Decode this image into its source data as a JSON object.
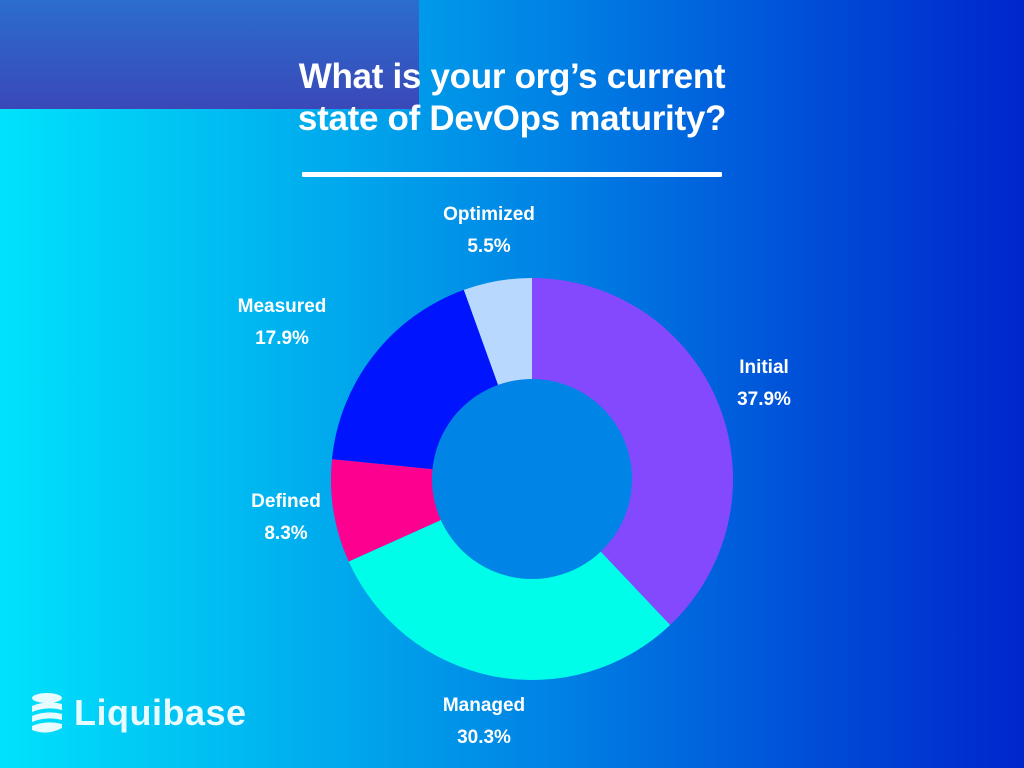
{
  "title": "What is your org’s current\nstate of DevOps maturity?",
  "brand": {
    "name": "Liquibase",
    "icon": "liquibase-logo-icon"
  },
  "colors": {
    "initial": "#8549fd",
    "managed": "#00fde9",
    "defined": "#fe0090",
    "measured": "#0014fd",
    "optimized": "#b8d8fd",
    "center": "#0084e6"
  },
  "chart_data": {
    "type": "pie",
    "variant": "donut",
    "title": "What is your org’s current state of DevOps maturity?",
    "categories": [
      "Initial",
      "Managed",
      "Defined",
      "Measured",
      "Optimized"
    ],
    "values": [
      37.9,
      30.3,
      8.3,
      17.9,
      5.5
    ],
    "unit": "%",
    "start_angle": "12 o'clock, clockwise",
    "legend": "none (direct labels)"
  },
  "labels": [
    {
      "name": "Initial",
      "value": "37.9%"
    },
    {
      "name": "Managed",
      "value": "30.3%"
    },
    {
      "name": "Defined",
      "value": "8.3%"
    },
    {
      "name": "Measured",
      "value": "17.9%"
    },
    {
      "name": "Optimized",
      "value": "5.5%"
    }
  ]
}
